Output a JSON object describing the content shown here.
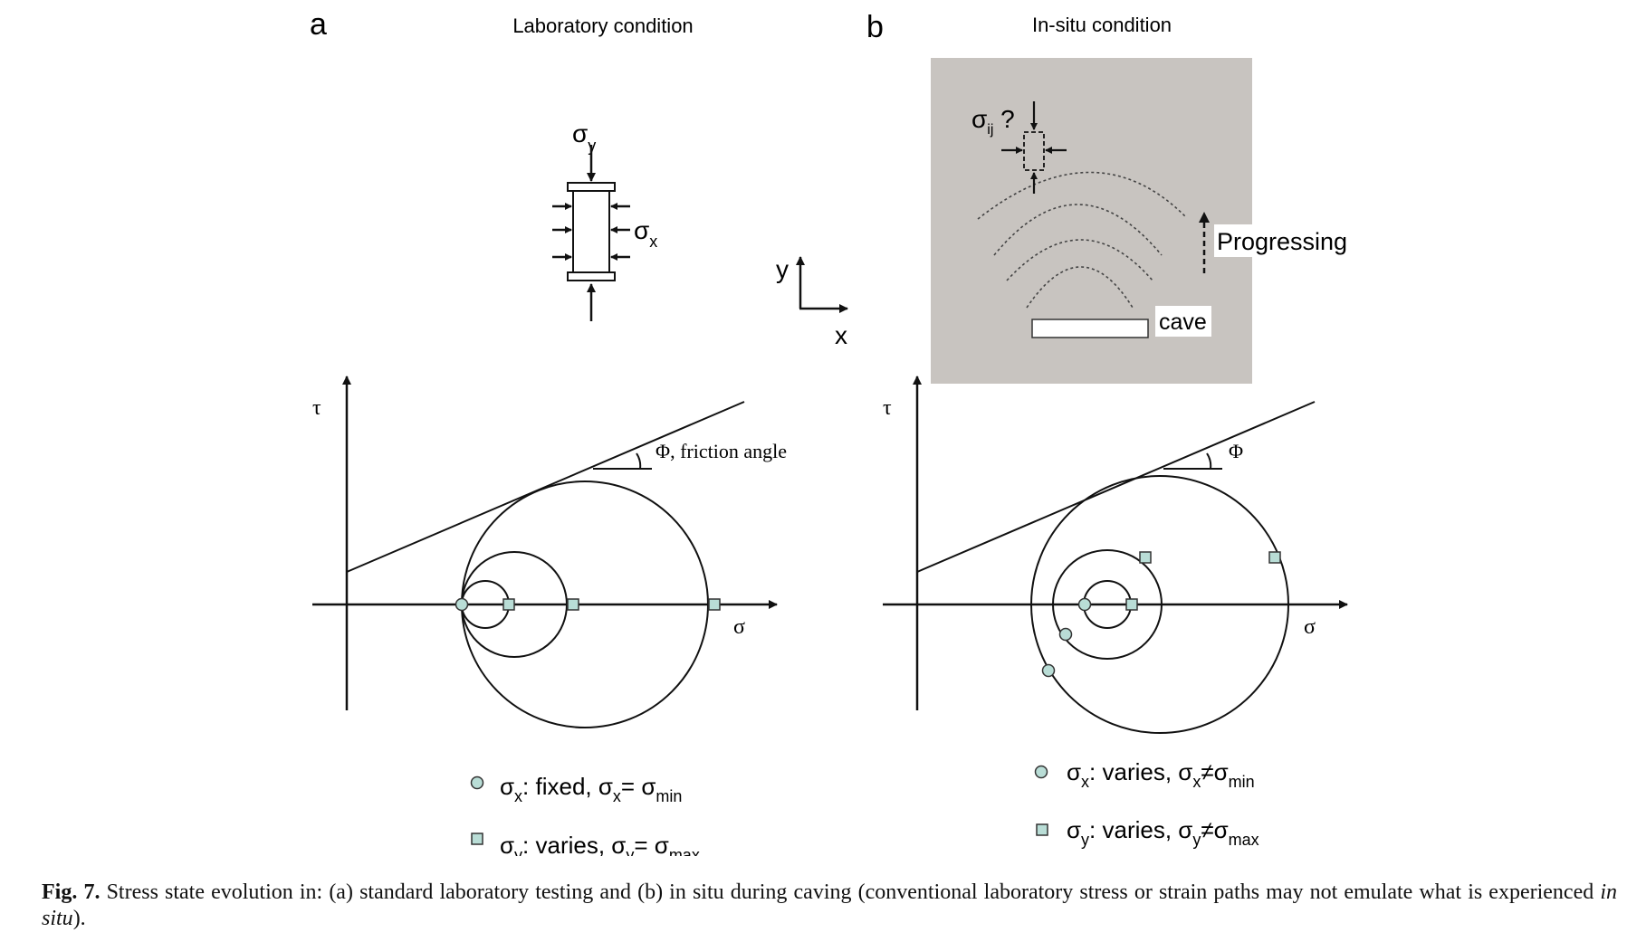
{
  "panel_a": {
    "letter": "a",
    "title": "Laboratory condition",
    "sigma_y_label": {
      "base": "σ",
      "sub": "y"
    },
    "sigma_x_label": {
      "base": "σ",
      "sub": "x"
    },
    "axis_y": "y",
    "axis_x": "x",
    "tau_label": "τ",
    "sigma_axis_label": "σ",
    "friction_label": "Φ, friction angle",
    "legend": [
      {
        "marker": "circle",
        "text": "σ",
        "sub": "x",
        "rest": ": fixed, σ",
        "sub2": "x",
        "rest2": "= σ",
        "sub3": "min"
      },
      {
        "marker": "square",
        "text": "σ",
        "sub": "y",
        "rest": ": varies, σ",
        "sub2": "y",
        "rest2": "= σ",
        "sub3": "max"
      }
    ]
  },
  "panel_b": {
    "letter": "b",
    "title": "In-situ condition",
    "sigma_ij_label": {
      "base": "σ",
      "sub": "ij",
      "suffix": " ?"
    },
    "progressing_label": "Progressing",
    "cave_label": "cave",
    "tau_label": "τ",
    "sigma_axis_label": "σ",
    "friction_label": "Φ",
    "legend": [
      {
        "marker": "circle",
        "text": "σ",
        "sub": "x",
        "rest": ": varies, σ",
        "sub2": "x",
        "rest2": "≠σ",
        "sub3": "min"
      },
      {
        "marker": "square",
        "text": "σ",
        "sub": "y",
        "rest": ": varies, σ",
        "sub2": "y",
        "rest2": "≠σ",
        "sub3": "max"
      }
    ]
  },
  "caption": {
    "label": "Fig. 7.",
    "text_1": " Stress state evolution in: (a) standard laboratory testing and (b) in situ during caving (conventional laboratory stress or strain paths may not emulate what is experienced ",
    "italic": "in situ",
    "text_2": ")."
  },
  "colors": {
    "marker_fill": "#b9ddd6",
    "cave_bg": "#c8c4c0",
    "line": "#111111"
  }
}
